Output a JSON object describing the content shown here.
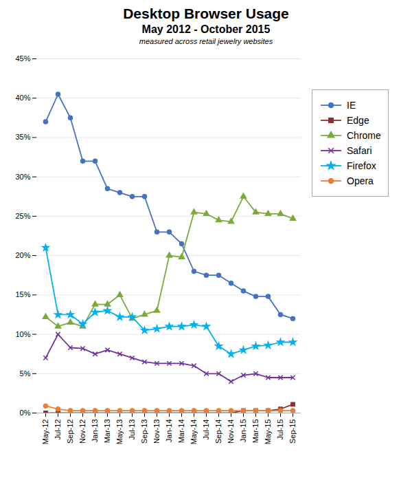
{
  "chart_data": {
    "type": "line",
    "title": "Desktop Browser Usage",
    "subtitle": "May 2012 - October 2015",
    "annotations": [
      "measured across retail jewelry websites"
    ],
    "categories": [
      "May-12",
      "Jul-12",
      "Sep-12",
      "Nov-12",
      "Jan-13",
      "Mar-13",
      "May-13",
      "Jul-13",
      "Sep-13",
      "Nov-13",
      "Jan-14",
      "Mar-14",
      "May-14",
      "Jul-14",
      "Sep-14",
      "Nov-14",
      "Jan-15",
      "Mar-15",
      "May-15",
      "Jul-15",
      "Sep-15"
    ],
    "series": [
      {
        "name": "IE",
        "color": "#4472C4",
        "marker": "circle",
        "values": [
          0.37,
          0.405,
          0.375,
          0.32,
          0.32,
          0.285,
          0.28,
          0.275,
          0.275,
          0.23,
          0.23,
          0.215,
          0.18,
          0.175,
          0.175,
          0.165,
          0.155,
          0.148,
          0.148,
          0.125,
          0.12
        ]
      },
      {
        "name": "Edge",
        "color": "#8B3030",
        "marker": "square",
        "values": [
          0.0,
          0.0,
          0.0,
          0.0,
          0.0,
          0.0,
          0.0,
          0.0,
          0.0,
          0.0,
          0.0,
          0.0,
          0.0,
          0.0,
          0.0,
          0.0,
          0.003,
          0.003,
          0.003,
          0.005,
          0.011
        ]
      },
      {
        "name": "Chrome",
        "color": "#7AAB3A",
        "marker": "triangle",
        "values": [
          0.122,
          0.11,
          0.115,
          0.11,
          0.138,
          0.138,
          0.15,
          0.12,
          0.125,
          0.13,
          0.2,
          0.198,
          0.255,
          0.253,
          0.245,
          0.243,
          0.275,
          0.255,
          0.253,
          0.253,
          0.247
        ]
      },
      {
        "name": "Safari",
        "color": "#7030A0",
        "marker": "times",
        "values": [
          0.07,
          0.1,
          0.083,
          0.082,
          0.075,
          0.08,
          0.075,
          0.07,
          0.065,
          0.063,
          0.063,
          0.063,
          0.06,
          0.05,
          0.05,
          0.04,
          0.048,
          0.05,
          0.045,
          0.045,
          0.045
        ]
      },
      {
        "name": "Firefox",
        "color": "#00B0F0",
        "marker": "star",
        "values": [
          0.21,
          0.125,
          0.125,
          0.113,
          0.128,
          0.13,
          0.122,
          0.122,
          0.105,
          0.107,
          0.11,
          0.11,
          0.112,
          0.11,
          0.085,
          0.075,
          0.08,
          0.085,
          0.086,
          0.09,
          0.09
        ]
      },
      {
        "name": "Opera",
        "color": "#ED7D31",
        "marker": "circle",
        "values": [
          0.009,
          0.005,
          0.003,
          0.003,
          0.003,
          0.003,
          0.003,
          0.003,
          0.003,
          0.003,
          0.003,
          0.003,
          0.003,
          0.003,
          0.003,
          0.003,
          0.003,
          0.003,
          0.003,
          0.003,
          0.003
        ]
      }
    ],
    "ylim": [
      0.0,
      0.45
    ],
    "yticks": [
      {
        "value": 0.0,
        "label": "0%"
      },
      {
        "value": 0.05,
        "label": "5%"
      },
      {
        "value": 0.1,
        "label": "10%"
      },
      {
        "value": 0.15,
        "label": "15%"
      },
      {
        "value": 0.2,
        "label": "20%"
      },
      {
        "value": 0.25,
        "label": "25%"
      },
      {
        "value": 0.3,
        "label": "30%"
      },
      {
        "value": 0.35,
        "label": "35%"
      },
      {
        "value": 0.4,
        "label": "40%"
      },
      {
        "value": 0.45,
        "label": "45%"
      }
    ],
    "grid": true,
    "legend": "right"
  }
}
